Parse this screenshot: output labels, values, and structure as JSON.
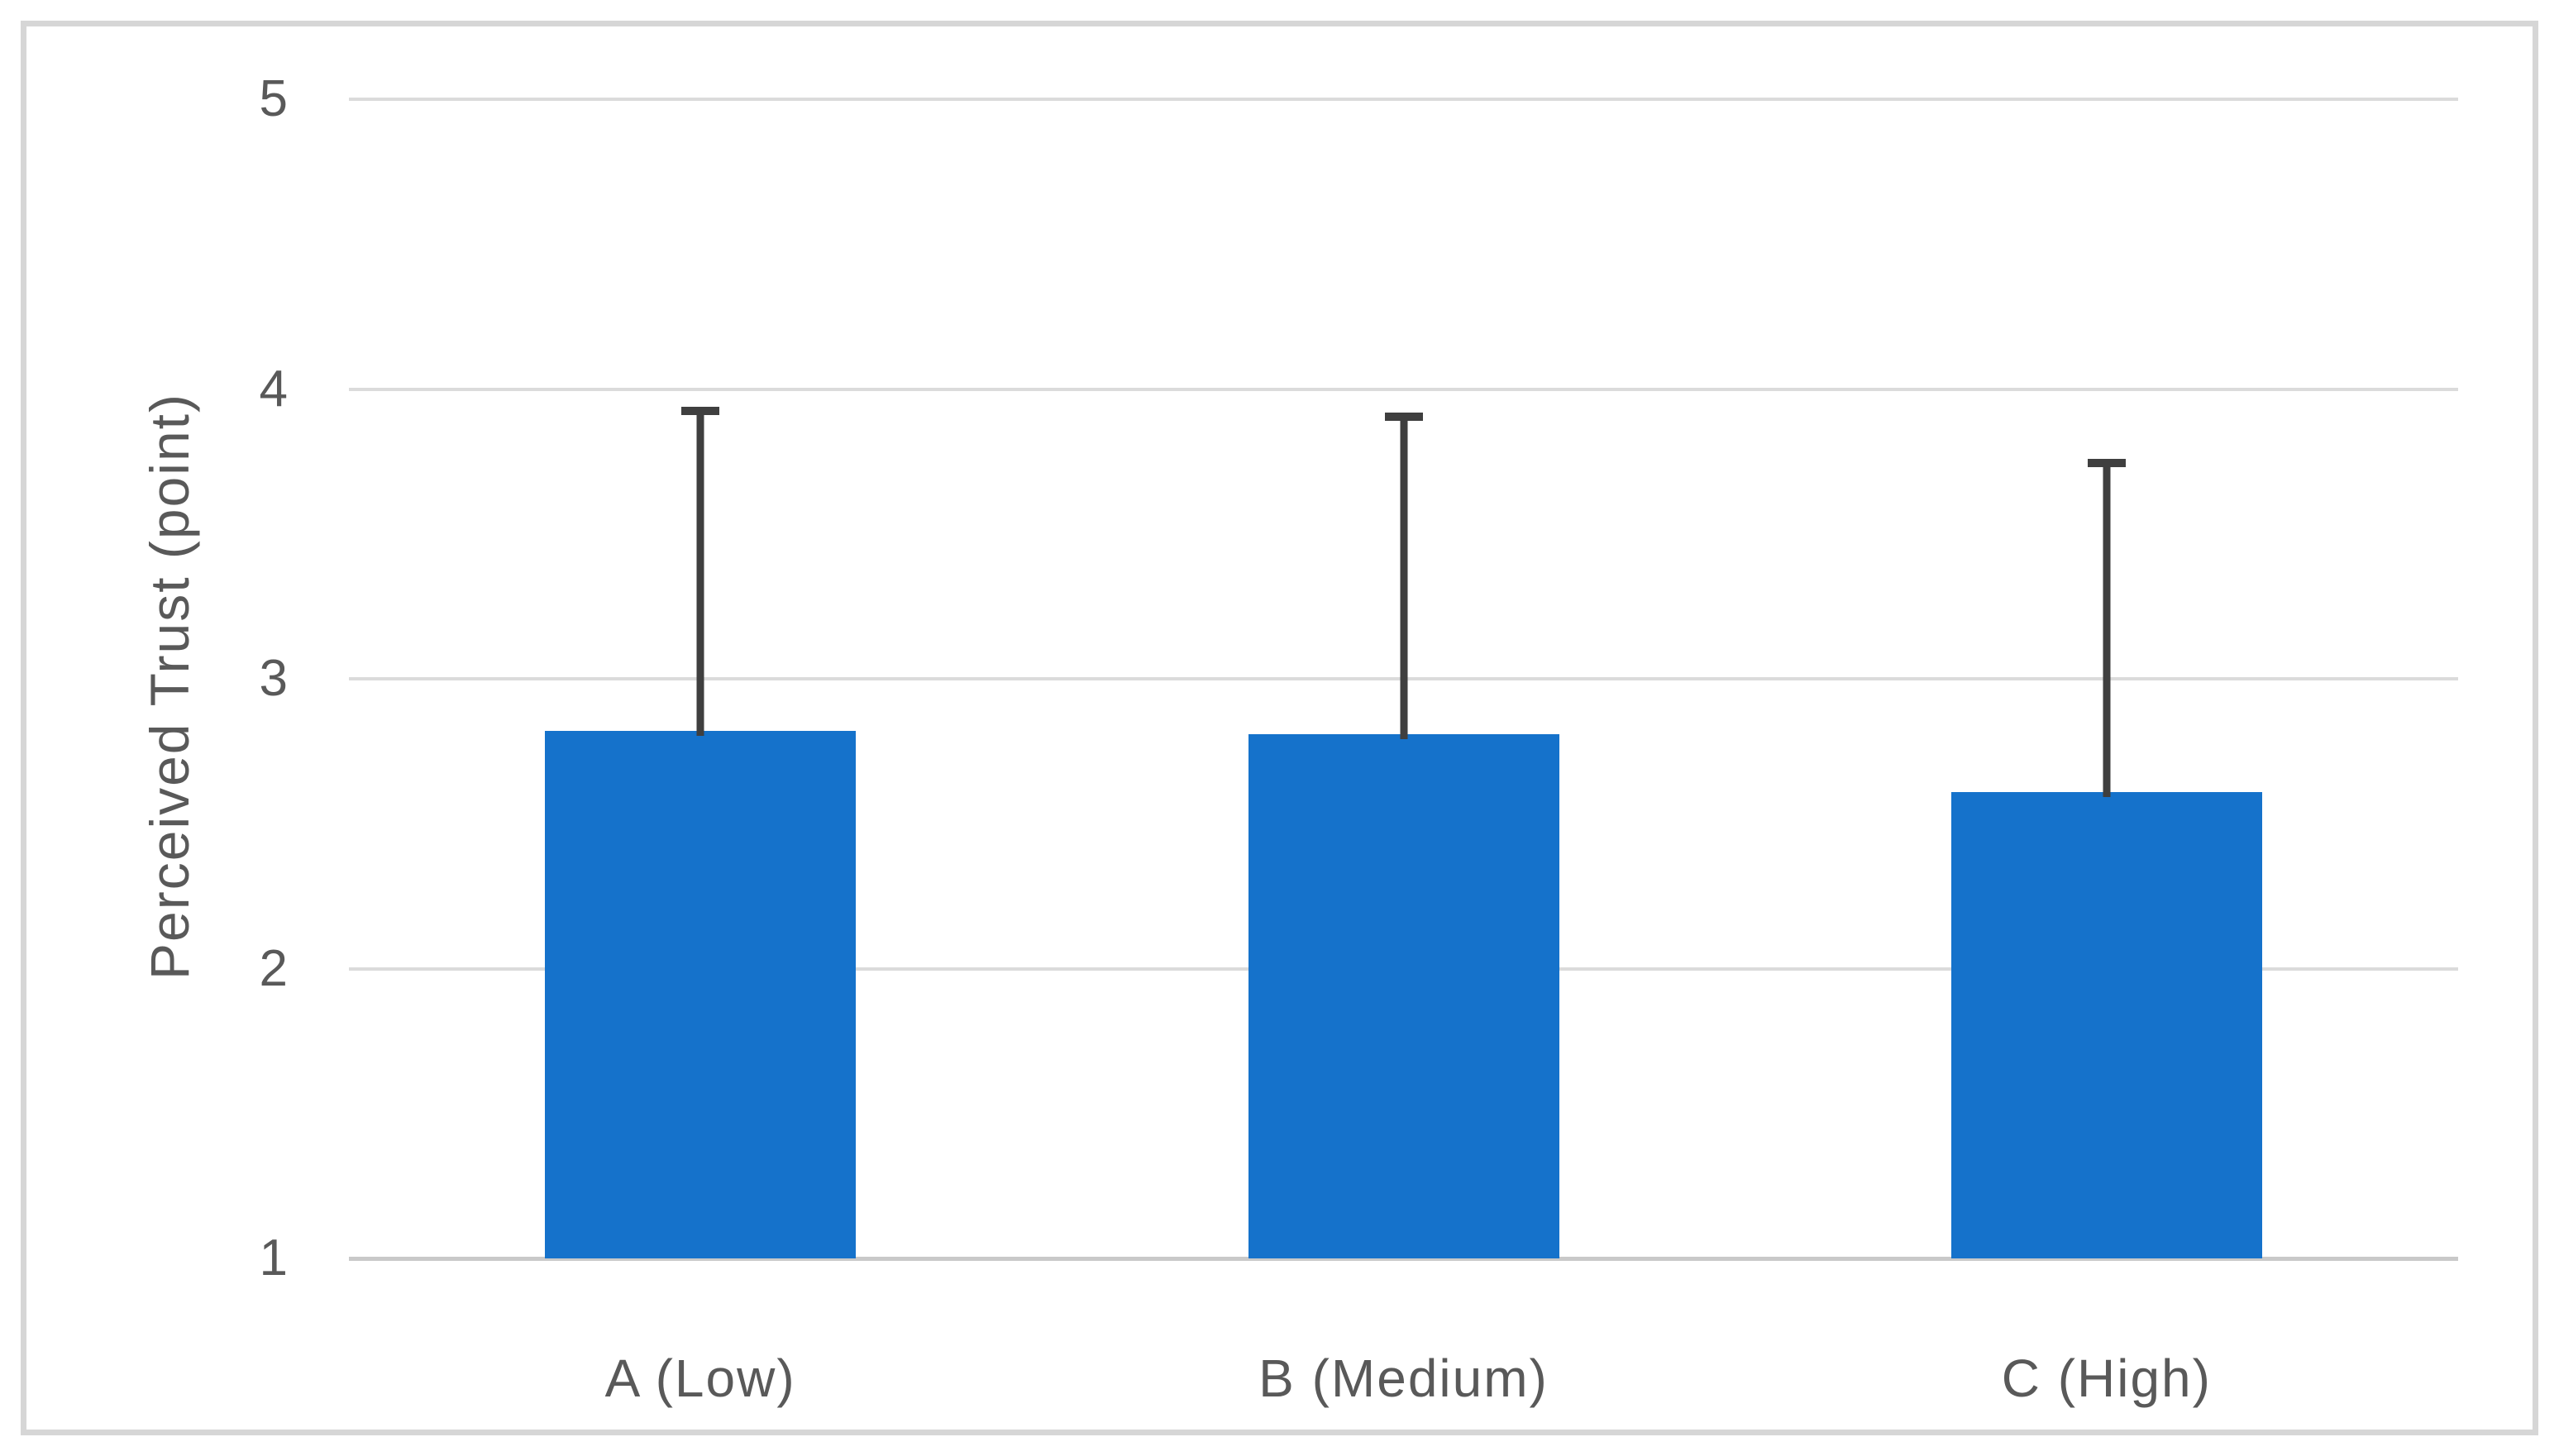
{
  "chart_data": {
    "type": "bar",
    "categories": [
      "A (Low)",
      "B (Medium)",
      "C (High)"
    ],
    "values": [
      2.82,
      2.81,
      2.61
    ],
    "error_plus": [
      1.12,
      1.11,
      1.15
    ],
    "series_name": "Perceived Trust",
    "title": "",
    "xlabel": "",
    "ylabel": "Perceived Trust (point)",
    "ylim": [
      1,
      5
    ],
    "yticks": [
      1,
      2,
      3,
      4,
      5
    ],
    "grid": "horizontal-on",
    "legend": "none",
    "error_bars": "upper-only",
    "bar_color": "#1572CB",
    "error_bar_color": "#3F3F3F",
    "gridline_color": "#DBDBDB",
    "axis_line_color": "#C9C9C9",
    "label_color": "#595959",
    "frame_border_color": "#D6D6D6",
    "background_color": "#FFFFFF"
  }
}
